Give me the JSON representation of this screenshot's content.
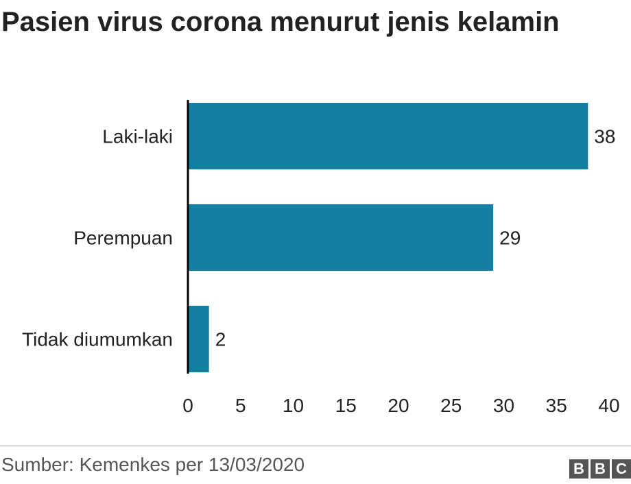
{
  "title": "Pasien virus corona menurut jenis kelamin",
  "source": "Sumber: Kemenkes per 13/03/2020",
  "logo": [
    "B",
    "B",
    "C"
  ],
  "colors": {
    "bar": "#1380a1",
    "axis": "#000000",
    "text": "#222222"
  },
  "chart_data": {
    "type": "bar",
    "orientation": "horizontal",
    "title": "Pasien virus corona menurut jenis kelamin",
    "categories": [
      "Laki-laki",
      "Perempuan",
      "Tidak diumumkan"
    ],
    "values": [
      38,
      29,
      2
    ],
    "data_labels": [
      "38",
      "29",
      "2"
    ],
    "xlim": [
      0,
      40
    ],
    "xticks": [
      0,
      5,
      10,
      15,
      20,
      25,
      30,
      35,
      40
    ],
    "grid": false,
    "legend": "none"
  }
}
